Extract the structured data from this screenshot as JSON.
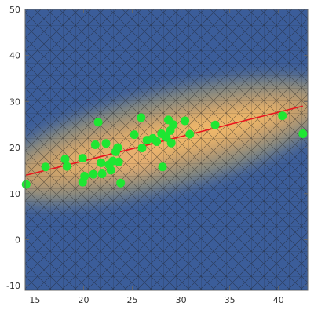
{
  "chart_data": {
    "type": "scatter",
    "title": "",
    "xlabel": "",
    "ylabel": "",
    "xlim": [
      14,
      43
    ],
    "ylim": [
      -11,
      50
    ],
    "x_ticks": [
      15,
      20,
      25,
      30,
      35,
      40
    ],
    "y_ticks": [
      -10,
      0,
      10,
      20,
      30,
      40,
      50
    ],
    "grid": false,
    "background": "density heatmap with triangular mesh overlay",
    "colors": {
      "density_low": "#3b5d9a",
      "density_mid": "#8a8c7e",
      "density_high": "#f0b86a",
      "points": "#1ee632",
      "fit_line": "#e8141e",
      "mesh": "#1a1a1a"
    },
    "series": [
      {
        "type": "scatter",
        "points": [
          [
            14.1,
            12.0
          ],
          [
            16.1,
            15.8
          ],
          [
            18.1,
            17.5
          ],
          [
            18.3,
            15.9
          ],
          [
            19.9,
            17.7
          ],
          [
            19.9,
            12.5
          ],
          [
            20.1,
            13.8
          ],
          [
            21.0,
            14.2
          ],
          [
            21.2,
            20.6
          ],
          [
            21.5,
            25.5
          ],
          [
            21.8,
            16.7
          ],
          [
            21.9,
            14.3
          ],
          [
            22.3,
            20.9
          ],
          [
            22.6,
            16.3
          ],
          [
            22.8,
            15.1
          ],
          [
            23.0,
            17.1
          ],
          [
            23.3,
            19.1
          ],
          [
            23.5,
            20.0
          ],
          [
            23.6,
            16.9
          ],
          [
            23.8,
            12.3
          ],
          [
            25.2,
            22.8
          ],
          [
            25.9,
            26.5
          ],
          [
            26.0,
            19.9
          ],
          [
            26.5,
            21.6
          ],
          [
            27.1,
            22.0
          ],
          [
            27.5,
            21.3
          ],
          [
            28.0,
            23.0
          ],
          [
            28.1,
            15.8
          ],
          [
            28.5,
            22.2
          ],
          [
            28.7,
            26.0
          ],
          [
            28.9,
            23.7
          ],
          [
            29.0,
            21.0
          ],
          [
            29.2,
            25.0
          ],
          [
            30.4,
            25.8
          ],
          [
            30.9,
            22.9
          ],
          [
            33.5,
            24.9
          ],
          [
            40.4,
            26.9
          ],
          [
            42.5,
            23.0
          ]
        ]
      },
      {
        "type": "line",
        "points": [
          [
            14.1,
            14.0
          ],
          [
            42.5,
            29.0
          ]
        ]
      }
    ]
  }
}
